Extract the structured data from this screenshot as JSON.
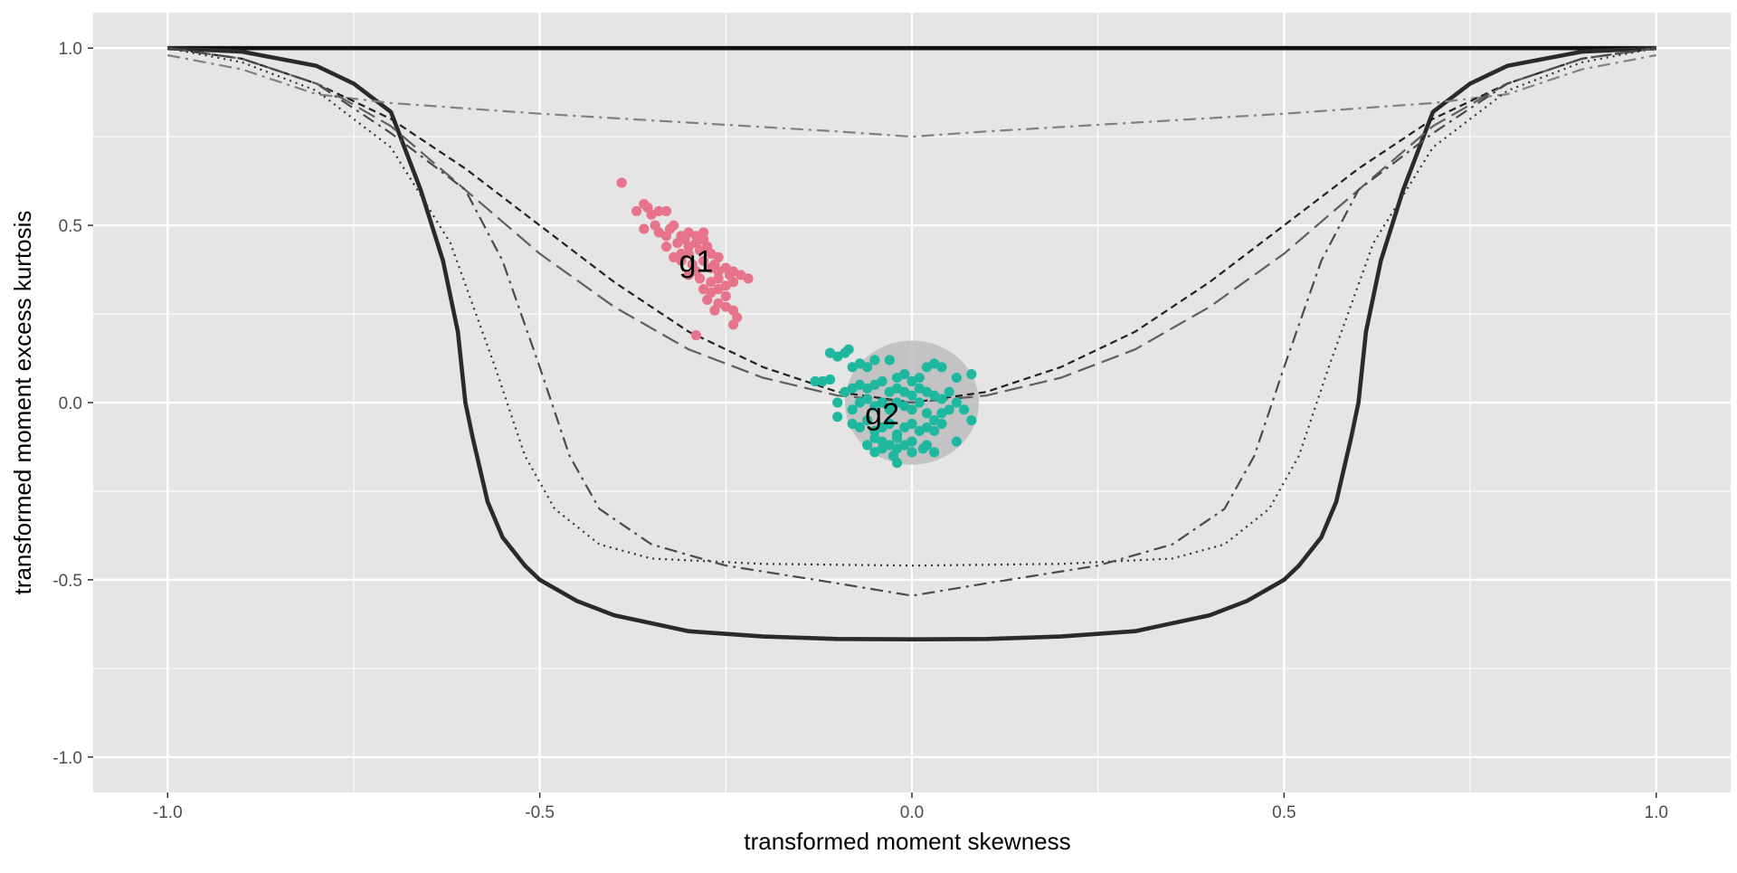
{
  "chart_data": {
    "type": "scatter",
    "title": "",
    "xlabel": "transformed moment skewness",
    "ylabel": "transformed moment excess kurtosis",
    "xlim": [
      -1.1,
      1.1
    ],
    "ylim": [
      -1.1,
      1.1
    ],
    "x_ticks": [
      {
        "value": -1.0,
        "label": "-1.0"
      },
      {
        "value": -0.5,
        "label": "-0.5"
      },
      {
        "value": 0.0,
        "label": "0.0"
      },
      {
        "value": 0.5,
        "label": "0.5"
      },
      {
        "value": 1.0,
        "label": "1.0"
      }
    ],
    "y_ticks": [
      {
        "value": 1.0,
        "label": "1.0"
      },
      {
        "value": 0.5,
        "label": "0.5"
      },
      {
        "value": 0.0,
        "label": "0.0"
      },
      {
        "value": -0.5,
        "label": "-0.5"
      },
      {
        "value": -1.0,
        "label": "-1.0"
      }
    ],
    "grid": true,
    "legend": "none",
    "colors": {
      "panel": "#e5e5e5",
      "grid": "#ffffff",
      "g1": "#e7748a",
      "g2": "#1eb8a0",
      "ellipse": "#bdbdbd",
      "curve_dark": "#222222",
      "curve_mid": "#555555",
      "curve_light": "#808080"
    },
    "reference_curves": [
      {
        "style": "solid-thick",
        "color": "#111111",
        "points": [
          [
            -1.0,
            1.0
          ],
          [
            1.0,
            1.0
          ]
        ]
      },
      {
        "style": "solid-thick",
        "color": "#2a2a2a",
        "points": [
          [
            -1.0,
            1.0
          ],
          [
            -0.9,
            0.99
          ],
          [
            -0.8,
            0.95
          ],
          [
            -0.75,
            0.9
          ],
          [
            -0.7,
            0.82
          ],
          [
            -0.66,
            0.6
          ],
          [
            -0.63,
            0.4
          ],
          [
            -0.61,
            0.2
          ],
          [
            -0.6,
            0.0
          ],
          [
            -0.59,
            -0.1
          ],
          [
            -0.57,
            -0.28
          ],
          [
            -0.55,
            -0.38
          ],
          [
            -0.52,
            -0.46
          ],
          [
            -0.5,
            -0.5
          ],
          [
            -0.45,
            -0.56
          ],
          [
            -0.4,
            -0.6
          ],
          [
            -0.3,
            -0.645
          ],
          [
            -0.2,
            -0.66
          ],
          [
            -0.1,
            -0.667
          ],
          [
            0.0,
            -0.668
          ],
          [
            0.1,
            -0.667
          ],
          [
            0.2,
            -0.66
          ],
          [
            0.3,
            -0.645
          ],
          [
            0.4,
            -0.6
          ],
          [
            0.45,
            -0.56
          ],
          [
            0.5,
            -0.5
          ],
          [
            0.52,
            -0.46
          ],
          [
            0.55,
            -0.38
          ],
          [
            0.57,
            -0.28
          ],
          [
            0.59,
            -0.1
          ],
          [
            0.6,
            0.0
          ],
          [
            0.61,
            0.2
          ],
          [
            0.63,
            0.4
          ],
          [
            0.66,
            0.6
          ],
          [
            0.7,
            0.82
          ],
          [
            0.75,
            0.9
          ],
          [
            0.8,
            0.95
          ],
          [
            0.9,
            0.99
          ],
          [
            1.0,
            1.0
          ]
        ]
      },
      {
        "style": "dashdot",
        "color": "#808080",
        "points": [
          [
            -1.0,
            0.98
          ],
          [
            -0.9,
            0.94
          ],
          [
            -0.8,
            0.87
          ],
          [
            -0.7,
            0.845
          ],
          [
            -0.5,
            0.815
          ],
          [
            -0.3,
            0.79
          ],
          [
            -0.1,
            0.765
          ],
          [
            0.0,
            0.75
          ],
          [
            0.1,
            0.765
          ],
          [
            0.3,
            0.79
          ],
          [
            0.5,
            0.815
          ],
          [
            0.7,
            0.845
          ],
          [
            0.8,
            0.87
          ],
          [
            0.9,
            0.94
          ],
          [
            1.0,
            0.98
          ]
        ]
      },
      {
        "style": "dashed-short",
        "color": "#222222",
        "points": [
          [
            -1.0,
            1.0
          ],
          [
            -0.9,
            0.97
          ],
          [
            -0.8,
            0.9
          ],
          [
            -0.7,
            0.8
          ],
          [
            -0.6,
            0.66
          ],
          [
            -0.5,
            0.5
          ],
          [
            -0.4,
            0.34
          ],
          [
            -0.3,
            0.2
          ],
          [
            -0.2,
            0.1
          ],
          [
            -0.1,
            0.03
          ],
          [
            0.0,
            0.0
          ],
          [
            0.1,
            0.03
          ],
          [
            0.2,
            0.1
          ],
          [
            0.3,
            0.2
          ],
          [
            0.4,
            0.34
          ],
          [
            0.5,
            0.5
          ],
          [
            0.6,
            0.66
          ],
          [
            0.7,
            0.8
          ],
          [
            0.8,
            0.9
          ],
          [
            0.9,
            0.97
          ],
          [
            1.0,
            1.0
          ]
        ]
      },
      {
        "style": "dashed-long",
        "color": "#5e5e5e",
        "points": [
          [
            -1.0,
            1.0
          ],
          [
            -0.9,
            0.97
          ],
          [
            -0.8,
            0.9
          ],
          [
            -0.7,
            0.78
          ],
          [
            -0.6,
            0.6
          ],
          [
            -0.5,
            0.42
          ],
          [
            -0.4,
            0.27
          ],
          [
            -0.3,
            0.15
          ],
          [
            -0.2,
            0.07
          ],
          [
            -0.1,
            0.02
          ],
          [
            0.0,
            0.0
          ],
          [
            0.1,
            0.02
          ],
          [
            0.2,
            0.07
          ],
          [
            0.3,
            0.15
          ],
          [
            0.4,
            0.27
          ],
          [
            0.5,
            0.42
          ],
          [
            0.6,
            0.6
          ],
          [
            0.7,
            0.78
          ],
          [
            0.8,
            0.9
          ],
          [
            0.9,
            0.97
          ],
          [
            1.0,
            1.0
          ]
        ]
      },
      {
        "style": "dotted",
        "color": "#333333",
        "points": [
          [
            -1.0,
            1.0
          ],
          [
            -0.9,
            0.96
          ],
          [
            -0.8,
            0.88
          ],
          [
            -0.7,
            0.72
          ],
          [
            -0.62,
            0.45
          ],
          [
            -0.56,
            0.1
          ],
          [
            -0.52,
            -0.15
          ],
          [
            -0.48,
            -0.3
          ],
          [
            -0.42,
            -0.4
          ],
          [
            -0.35,
            -0.44
          ],
          [
            -0.2,
            -0.455
          ],
          [
            0.0,
            -0.46
          ],
          [
            0.2,
            -0.455
          ],
          [
            0.35,
            -0.44
          ],
          [
            0.42,
            -0.4
          ],
          [
            0.48,
            -0.3
          ],
          [
            0.52,
            -0.15
          ],
          [
            0.56,
            0.1
          ],
          [
            0.62,
            0.45
          ],
          [
            0.7,
            0.72
          ],
          [
            0.8,
            0.88
          ],
          [
            0.9,
            0.96
          ],
          [
            1.0,
            1.0
          ]
        ]
      },
      {
        "style": "dashdot",
        "color": "#4a4a4a",
        "points": [
          [
            -1.0,
            1.0
          ],
          [
            -0.9,
            0.97
          ],
          [
            -0.8,
            0.9
          ],
          [
            -0.7,
            0.76
          ],
          [
            -0.6,
            0.6
          ],
          [
            -0.55,
            0.4
          ],
          [
            -0.5,
            0.1
          ],
          [
            -0.46,
            -0.15
          ],
          [
            -0.42,
            -0.3
          ],
          [
            -0.35,
            -0.4
          ],
          [
            -0.25,
            -0.46
          ],
          [
            -0.1,
            -0.51
          ],
          [
            0.0,
            -0.545
          ],
          [
            0.1,
            -0.51
          ],
          [
            0.25,
            -0.46
          ],
          [
            0.35,
            -0.4
          ],
          [
            0.42,
            -0.3
          ],
          [
            0.46,
            -0.15
          ],
          [
            0.5,
            0.1
          ],
          [
            0.55,
            0.4
          ],
          [
            0.6,
            0.6
          ],
          [
            0.7,
            0.76
          ],
          [
            0.8,
            0.9
          ],
          [
            0.9,
            0.97
          ],
          [
            1.0,
            1.0
          ]
        ]
      }
    ],
    "ellipse": {
      "center": [
        0.0,
        0.0
      ],
      "rx": 0.09,
      "ry": 0.175
    },
    "series": [
      {
        "name": "g1",
        "label_position": [
          -0.29,
          0.4
        ],
        "points": [
          [
            -0.39,
            0.62
          ],
          [
            -0.37,
            0.54
          ],
          [
            -0.36,
            0.56
          ],
          [
            -0.355,
            0.55
          ],
          [
            -0.35,
            0.53
          ],
          [
            -0.34,
            0.54
          ],
          [
            -0.33,
            0.54
          ],
          [
            -0.36,
            0.49
          ],
          [
            -0.345,
            0.5
          ],
          [
            -0.34,
            0.48
          ],
          [
            -0.33,
            0.47
          ],
          [
            -0.325,
            0.49
          ],
          [
            -0.32,
            0.5
          ],
          [
            -0.31,
            0.47
          ],
          [
            -0.3,
            0.48
          ],
          [
            -0.29,
            0.47
          ],
          [
            -0.28,
            0.48
          ],
          [
            -0.315,
            0.45
          ],
          [
            -0.305,
            0.46
          ],
          [
            -0.3,
            0.44
          ],
          [
            -0.29,
            0.45
          ],
          [
            -0.285,
            0.43
          ],
          [
            -0.275,
            0.44
          ],
          [
            -0.27,
            0.42
          ],
          [
            -0.26,
            0.41
          ],
          [
            -0.32,
            0.41
          ],
          [
            -0.31,
            0.4
          ],
          [
            -0.3,
            0.42
          ],
          [
            -0.295,
            0.39
          ],
          [
            -0.28,
            0.4
          ],
          [
            -0.27,
            0.38
          ],
          [
            -0.26,
            0.37
          ],
          [
            -0.25,
            0.38
          ],
          [
            -0.24,
            0.37
          ],
          [
            -0.23,
            0.36
          ],
          [
            -0.22,
            0.35
          ],
          [
            -0.3,
            0.36
          ],
          [
            -0.29,
            0.37
          ],
          [
            -0.285,
            0.35
          ],
          [
            -0.27,
            0.34
          ],
          [
            -0.26,
            0.35
          ],
          [
            -0.25,
            0.33
          ],
          [
            -0.24,
            0.34
          ],
          [
            -0.28,
            0.32
          ],
          [
            -0.27,
            0.31
          ],
          [
            -0.26,
            0.32
          ],
          [
            -0.25,
            0.3
          ],
          [
            -0.275,
            0.29
          ],
          [
            -0.26,
            0.28
          ],
          [
            -0.25,
            0.27
          ],
          [
            -0.265,
            0.26
          ],
          [
            -0.24,
            0.26
          ],
          [
            -0.235,
            0.24
          ],
          [
            -0.24,
            0.22
          ],
          [
            -0.29,
            0.19
          ],
          [
            -0.31,
            0.42
          ],
          [
            -0.33,
            0.44
          ],
          [
            -0.28,
            0.46
          ],
          [
            -0.265,
            0.39
          ],
          [
            -0.245,
            0.36
          ]
        ]
      },
      {
        "name": "g2",
        "label_position": [
          -0.04,
          -0.03
        ],
        "points": [
          [
            -0.13,
            0.06
          ],
          [
            -0.12,
            0.06
          ],
          [
            -0.11,
            0.065
          ],
          [
            -0.11,
            0.14
          ],
          [
            -0.1,
            0.13
          ],
          [
            -0.09,
            0.14
          ],
          [
            -0.085,
            0.15
          ],
          [
            -0.08,
            0.1
          ],
          [
            -0.07,
            0.11
          ],
          [
            -0.06,
            0.1
          ],
          [
            -0.05,
            0.12
          ],
          [
            -0.03,
            0.12
          ],
          [
            -0.02,
            0.07
          ],
          [
            -0.01,
            0.08
          ],
          [
            0.0,
            0.06
          ],
          [
            0.01,
            0.07
          ],
          [
            0.02,
            0.1
          ],
          [
            0.03,
            0.11
          ],
          [
            0.04,
            0.1
          ],
          [
            0.06,
            0.07
          ],
          [
            -0.1,
            0.0
          ],
          [
            -0.09,
            0.03
          ],
          [
            -0.08,
            0.04
          ],
          [
            -0.07,
            0.05
          ],
          [
            -0.06,
            0.04
          ],
          [
            -0.05,
            0.05
          ],
          [
            -0.04,
            0.06
          ],
          [
            -0.03,
            0.03
          ],
          [
            -0.02,
            0.04
          ],
          [
            -0.01,
            0.03
          ],
          [
            0.0,
            0.02
          ],
          [
            0.01,
            0.04
          ],
          [
            0.02,
            0.03
          ],
          [
            0.03,
            0.02
          ],
          [
            0.04,
            0.01
          ],
          [
            0.05,
            0.03
          ],
          [
            0.06,
            0.0
          ],
          [
            0.08,
            0.08
          ],
          [
            -0.1,
            -0.04
          ],
          [
            -0.08,
            -0.02
          ],
          [
            -0.07,
            0.0
          ],
          [
            -0.06,
            0.01
          ],
          [
            -0.05,
            -0.01
          ],
          [
            -0.04,
            0.0
          ],
          [
            -0.03,
            -0.02
          ],
          [
            -0.02,
            0.0
          ],
          [
            -0.01,
            -0.01
          ],
          [
            0.0,
            -0.02
          ],
          [
            0.01,
            0.0
          ],
          [
            0.02,
            -0.03
          ],
          [
            0.03,
            -0.05
          ],
          [
            0.04,
            -0.03
          ],
          [
            0.05,
            -0.02
          ],
          [
            0.07,
            -0.02
          ],
          [
            0.08,
            -0.05
          ],
          [
            -0.08,
            -0.06
          ],
          [
            -0.07,
            -0.07
          ],
          [
            -0.06,
            -0.05
          ],
          [
            -0.05,
            -0.08
          ],
          [
            -0.04,
            -0.07
          ],
          [
            -0.03,
            -0.06
          ],
          [
            -0.02,
            -0.09
          ],
          [
            -0.01,
            -0.07
          ],
          [
            0.0,
            -0.06
          ],
          [
            0.01,
            -0.08
          ],
          [
            0.02,
            -0.07
          ],
          [
            0.03,
            -0.08
          ],
          [
            0.04,
            -0.06
          ],
          [
            0.06,
            -0.11
          ],
          [
            -0.06,
            -0.12
          ],
          [
            -0.05,
            -0.1
          ],
          [
            -0.04,
            -0.11
          ],
          [
            -0.03,
            -0.12
          ],
          [
            -0.02,
            -0.1
          ],
          [
            -0.01,
            -0.12
          ],
          [
            0.0,
            -0.11
          ],
          [
            0.02,
            -0.12
          ],
          [
            0.03,
            -0.14
          ],
          [
            -0.05,
            -0.14
          ],
          [
            -0.04,
            -0.13
          ],
          [
            -0.025,
            -0.15
          ],
          [
            -0.02,
            -0.13
          ],
          [
            -0.02,
            -0.17
          ],
          [
            0.0,
            -0.14
          ],
          [
            0.015,
            -0.13
          ]
        ]
      }
    ]
  }
}
